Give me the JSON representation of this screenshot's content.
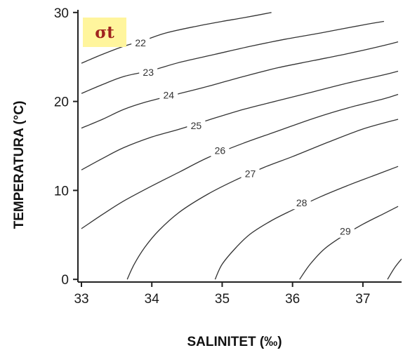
{
  "chart_data": {
    "type": "line",
    "badge": "σt",
    "xlabel": "SALINITET (‰)",
    "ylabel": "TEMPERATURA (°C)",
    "xlim": [
      32.95,
      37.55
    ],
    "ylim": [
      -0.3,
      30.3
    ],
    "x_ticks": [
      {
        "value": 33,
        "label": "33"
      },
      {
        "value": 34,
        "label": "34"
      },
      {
        "value": 35,
        "label": "35"
      },
      {
        "value": 36,
        "label": "36"
      },
      {
        "value": 37,
        "label": "37"
      }
    ],
    "y_ticks": [
      {
        "value": 0,
        "label": "0"
      },
      {
        "value": 10,
        "label": "10"
      },
      {
        "value": 20,
        "label": "20"
      },
      {
        "value": 30,
        "label": "30"
      }
    ],
    "grid": false,
    "colors": {
      "contour": "#333333",
      "axis": "#222222",
      "badge_bg": "#fff59d",
      "badge_text": "#a0241f"
    },
    "series": [
      {
        "label": "22",
        "label_at": [
          33.84,
          26.6
        ],
        "points": [
          [
            33.0,
            24.3
          ],
          [
            33.3,
            25.3
          ],
          [
            33.6,
            26.2
          ],
          [
            33.9,
            26.9
          ],
          [
            34.2,
            27.7
          ],
          [
            34.6,
            28.4
          ],
          [
            35.0,
            29.0
          ],
          [
            35.3,
            29.4
          ],
          [
            35.7,
            30.0
          ]
        ]
      },
      {
        "label": "23",
        "label_at": [
          33.95,
          23.3
        ],
        "points": [
          [
            33.0,
            20.9
          ],
          [
            33.3,
            21.9
          ],
          [
            33.6,
            22.8
          ],
          [
            34.0,
            23.5
          ],
          [
            34.4,
            24.4
          ],
          [
            34.9,
            25.3
          ],
          [
            35.4,
            26.2
          ],
          [
            35.9,
            27.0
          ],
          [
            36.4,
            27.7
          ],
          [
            37.0,
            28.6
          ],
          [
            37.3,
            29.0
          ]
        ]
      },
      {
        "label": "24",
        "label_at": [
          34.24,
          20.7
        ],
        "points": [
          [
            33.0,
            17.0
          ],
          [
            33.3,
            18.0
          ],
          [
            33.6,
            19.1
          ],
          [
            33.9,
            19.9
          ],
          [
            34.3,
            20.7
          ],
          [
            34.8,
            21.7
          ],
          [
            35.3,
            22.8
          ],
          [
            35.8,
            23.8
          ],
          [
            36.3,
            24.6
          ],
          [
            36.8,
            25.4
          ],
          [
            37.3,
            26.3
          ],
          [
            37.5,
            26.7
          ]
        ]
      },
      {
        "label": "25",
        "label_at": [
          34.63,
          17.3
        ],
        "points": [
          [
            33.0,
            12.3
          ],
          [
            33.3,
            13.6
          ],
          [
            33.6,
            14.8
          ],
          [
            34.0,
            16.0
          ],
          [
            34.4,
            16.9
          ],
          [
            34.8,
            17.9
          ],
          [
            35.3,
            19.1
          ],
          [
            35.8,
            20.1
          ],
          [
            36.3,
            21.1
          ],
          [
            36.8,
            22.1
          ],
          [
            37.3,
            23.0
          ],
          [
            37.5,
            23.4
          ]
        ]
      },
      {
        "label": "26",
        "label_at": [
          34.97,
          14.5
        ],
        "points": [
          [
            33.0,
            5.7
          ],
          [
            33.3,
            7.3
          ],
          [
            33.6,
            8.8
          ],
          [
            34.0,
            10.5
          ],
          [
            34.4,
            12.1
          ],
          [
            34.8,
            13.7
          ],
          [
            35.3,
            15.3
          ],
          [
            35.8,
            16.7
          ],
          [
            36.3,
            18.1
          ],
          [
            36.8,
            19.3
          ],
          [
            37.3,
            20.3
          ],
          [
            37.5,
            20.8
          ]
        ]
      },
      {
        "label": "27",
        "label_at": [
          35.4,
          11.9
        ],
        "points": [
          [
            33.65,
            0.0
          ],
          [
            33.75,
            1.7
          ],
          [
            33.9,
            3.6
          ],
          [
            34.1,
            5.5
          ],
          [
            34.4,
            7.6
          ],
          [
            34.8,
            9.6
          ],
          [
            35.2,
            11.2
          ],
          [
            35.6,
            12.6
          ],
          [
            36.0,
            13.8
          ],
          [
            36.5,
            15.4
          ],
          [
            37.0,
            16.9
          ],
          [
            37.5,
            18.0
          ]
        ]
      },
      {
        "label": "28",
        "label_at": [
          36.13,
          8.6
        ],
        "points": [
          [
            34.9,
            0.0
          ],
          [
            35.0,
            1.7
          ],
          [
            35.2,
            3.6
          ],
          [
            35.4,
            5.1
          ],
          [
            35.7,
            6.6
          ],
          [
            36.0,
            7.8
          ],
          [
            36.4,
            9.3
          ],
          [
            36.8,
            10.6
          ],
          [
            37.2,
            11.8
          ],
          [
            37.5,
            12.7
          ]
        ]
      },
      {
        "label": "29",
        "label_at": [
          36.75,
          5.4
        ],
        "points": [
          [
            36.1,
            0.0
          ],
          [
            36.25,
            1.7
          ],
          [
            36.45,
            3.4
          ],
          [
            36.7,
            4.8
          ],
          [
            37.0,
            6.2
          ],
          [
            37.3,
            7.4
          ],
          [
            37.5,
            8.2
          ]
        ]
      },
      {
        "label": "",
        "label_at": null,
        "points": [
          [
            37.35,
            0.0
          ],
          [
            37.45,
            1.3
          ],
          [
            37.55,
            2.3
          ]
        ]
      }
    ]
  }
}
